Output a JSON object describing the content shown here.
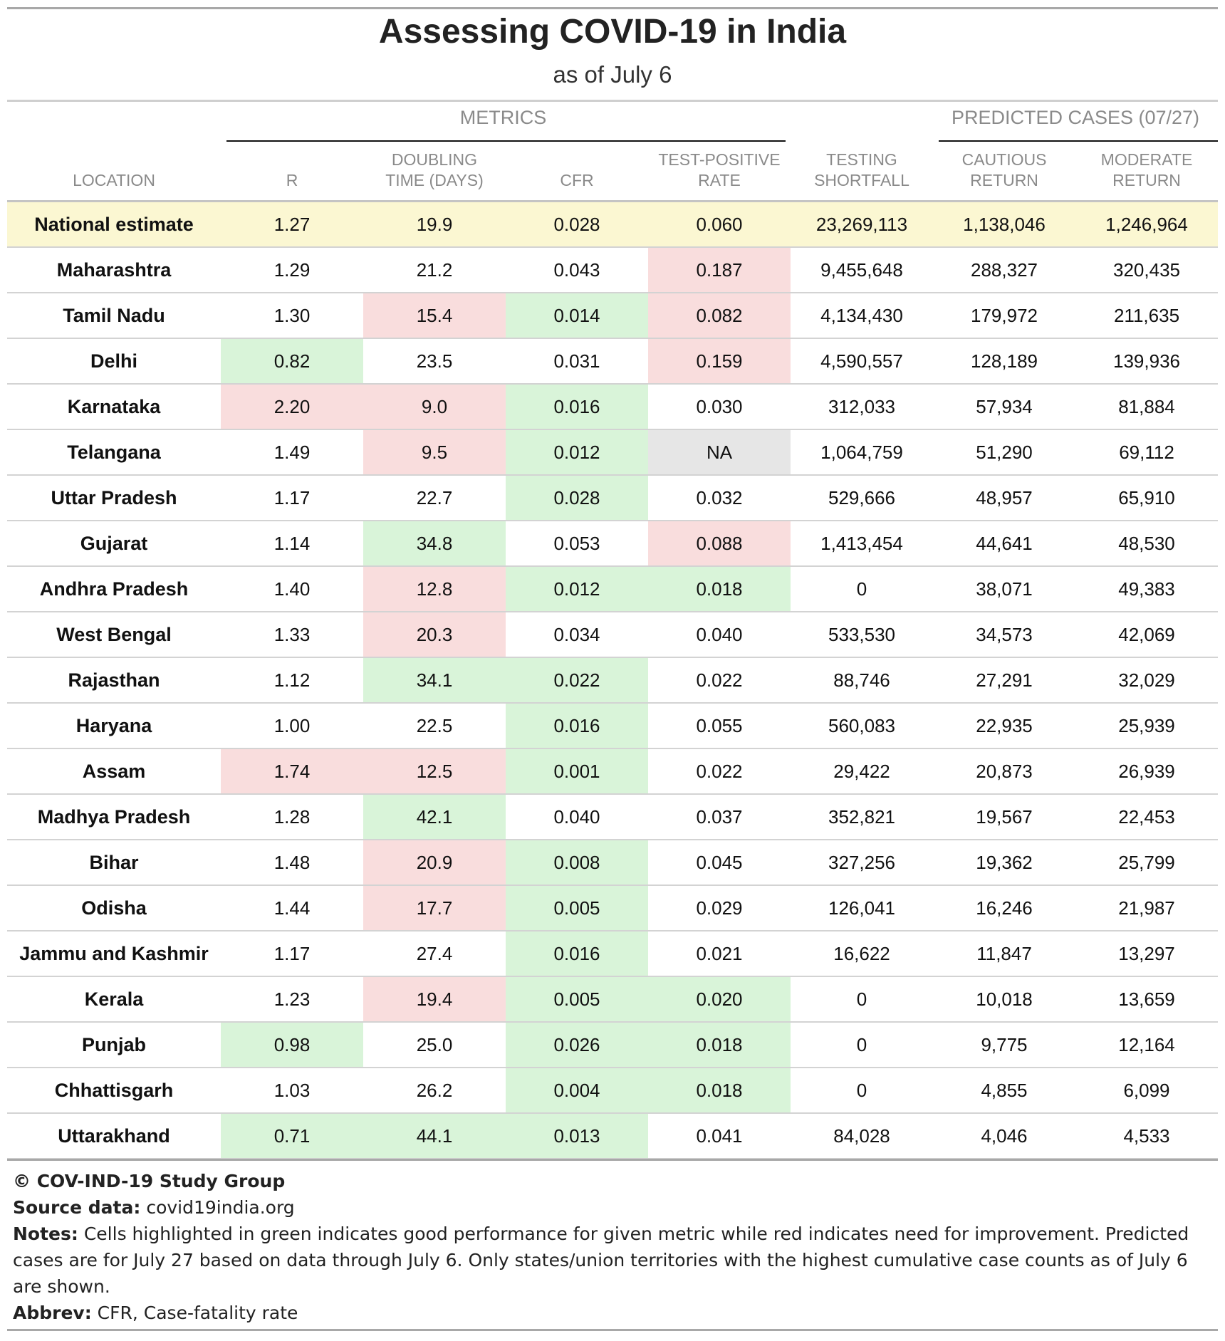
{
  "header": {
    "title": "Assessing COVID-19 in India",
    "subtitle": "as of July 6",
    "spanner_metrics": "METRICS",
    "spanner_predicted": "PREDICTED CASES (07/27)"
  },
  "chart_data": {
    "type": "table",
    "title": "Assessing COVID-19 in India",
    "subtitle": "as of July 6",
    "column_groups": [
      {
        "label": "METRICS",
        "columns": [
          "R",
          "DOUBLING TIME (DAYS)",
          "CFR",
          "TEST-POSITIVE RATE"
        ]
      },
      {
        "label": "PREDICTED CASES (07/27)",
        "columns": [
          "CAUTIOUS RETURN",
          "MODERATE RETURN"
        ]
      }
    ],
    "columns": [
      "LOCATION",
      "R",
      "DOUBLING TIME (DAYS)",
      "CFR",
      "TEST-POSITIVE RATE",
      "TESTING SHORTFALL",
      "CAUTIOUS RETURN",
      "MODERATE RETURN"
    ],
    "highlight_colors": {
      "good": "#d9f4d9",
      "bad": "#f9dddd",
      "na": "#e6e6e6",
      "national": "#fbf7d2"
    },
    "rows": [
      {
        "location": "National estimate",
        "national": true,
        "values": [
          "1.27",
          "19.9",
          "0.028",
          "0.060",
          "23,269,113",
          "1,138,046",
          "1,246,964"
        ],
        "hl": [
          "",
          "",
          "",
          "",
          "",
          "",
          ""
        ]
      },
      {
        "location": "Maharashtra",
        "values": [
          "1.29",
          "21.2",
          "0.043",
          "0.187",
          "9,455,648",
          "288,327",
          "320,435"
        ],
        "hl": [
          "",
          "",
          "",
          "r",
          "",
          "",
          ""
        ]
      },
      {
        "location": "Tamil Nadu",
        "values": [
          "1.30",
          "15.4",
          "0.014",
          "0.082",
          "4,134,430",
          "179,972",
          "211,635"
        ],
        "hl": [
          "",
          "r",
          "g",
          "r",
          "",
          "",
          ""
        ]
      },
      {
        "location": "Delhi",
        "values": [
          "0.82",
          "23.5",
          "0.031",
          "0.159",
          "4,590,557",
          "128,189",
          "139,936"
        ],
        "hl": [
          "g",
          "",
          "",
          "r",
          "",
          "",
          ""
        ]
      },
      {
        "location": "Karnataka",
        "values": [
          "2.20",
          "9.0",
          "0.016",
          "0.030",
          "312,033",
          "57,934",
          "81,884"
        ],
        "hl": [
          "r",
          "r",
          "g",
          "",
          "",
          "",
          ""
        ]
      },
      {
        "location": "Telangana",
        "values": [
          "1.49",
          "9.5",
          "0.012",
          "NA",
          "1,064,759",
          "51,290",
          "69,112"
        ],
        "hl": [
          "",
          "r",
          "g",
          "n",
          "",
          "",
          ""
        ]
      },
      {
        "location": "Uttar Pradesh",
        "values": [
          "1.17",
          "22.7",
          "0.028",
          "0.032",
          "529,666",
          "48,957",
          "65,910"
        ],
        "hl": [
          "",
          "",
          "g",
          "",
          "",
          "",
          ""
        ]
      },
      {
        "location": "Gujarat",
        "values": [
          "1.14",
          "34.8",
          "0.053",
          "0.088",
          "1,413,454",
          "44,641",
          "48,530"
        ],
        "hl": [
          "",
          "g",
          "",
          "r",
          "",
          "",
          ""
        ]
      },
      {
        "location": "Andhra Pradesh",
        "values": [
          "1.40",
          "12.8",
          "0.012",
          "0.018",
          "0",
          "38,071",
          "49,383"
        ],
        "hl": [
          "",
          "r",
          "g",
          "g",
          "",
          "",
          ""
        ]
      },
      {
        "location": "West Bengal",
        "values": [
          "1.33",
          "20.3",
          "0.034",
          "0.040",
          "533,530",
          "34,573",
          "42,069"
        ],
        "hl": [
          "",
          "r",
          "",
          "",
          "",
          "",
          ""
        ]
      },
      {
        "location": "Rajasthan",
        "values": [
          "1.12",
          "34.1",
          "0.022",
          "0.022",
          "88,746",
          "27,291",
          "32,029"
        ],
        "hl": [
          "",
          "g",
          "g",
          "",
          "",
          "",
          ""
        ]
      },
      {
        "location": "Haryana",
        "values": [
          "1.00",
          "22.5",
          "0.016",
          "0.055",
          "560,083",
          "22,935",
          "25,939"
        ],
        "hl": [
          "",
          "",
          "g",
          "",
          "",
          "",
          ""
        ]
      },
      {
        "location": "Assam",
        "values": [
          "1.74",
          "12.5",
          "0.001",
          "0.022",
          "29,422",
          "20,873",
          "26,939"
        ],
        "hl": [
          "r",
          "r",
          "g",
          "",
          "",
          "",
          ""
        ]
      },
      {
        "location": "Madhya Pradesh",
        "values": [
          "1.28",
          "42.1",
          "0.040",
          "0.037",
          "352,821",
          "19,567",
          "22,453"
        ],
        "hl": [
          "",
          "g",
          "",
          "",
          "",
          "",
          ""
        ]
      },
      {
        "location": "Bihar",
        "values": [
          "1.48",
          "20.9",
          "0.008",
          "0.045",
          "327,256",
          "19,362",
          "25,799"
        ],
        "hl": [
          "",
          "r",
          "g",
          "",
          "",
          "",
          ""
        ]
      },
      {
        "location": "Odisha",
        "values": [
          "1.44",
          "17.7",
          "0.005",
          "0.029",
          "126,041",
          "16,246",
          "21,987"
        ],
        "hl": [
          "",
          "r",
          "g",
          "",
          "",
          "",
          ""
        ]
      },
      {
        "location": "Jammu and Kashmir",
        "values": [
          "1.17",
          "27.4",
          "0.016",
          "0.021",
          "16,622",
          "11,847",
          "13,297"
        ],
        "hl": [
          "",
          "",
          "g",
          "",
          "",
          "",
          ""
        ]
      },
      {
        "location": "Kerala",
        "values": [
          "1.23",
          "19.4",
          "0.005",
          "0.020",
          "0",
          "10,018",
          "13,659"
        ],
        "hl": [
          "",
          "r",
          "g",
          "g",
          "",
          "",
          ""
        ]
      },
      {
        "location": "Punjab",
        "values": [
          "0.98",
          "25.0",
          "0.026",
          "0.018",
          "0",
          "9,775",
          "12,164"
        ],
        "hl": [
          "g",
          "",
          "g",
          "g",
          "",
          "",
          ""
        ]
      },
      {
        "location": "Chhattisgarh",
        "values": [
          "1.03",
          "26.2",
          "0.004",
          "0.018",
          "0",
          "4,855",
          "6,099"
        ],
        "hl": [
          "",
          "",
          "g",
          "g",
          "",
          "",
          ""
        ]
      },
      {
        "location": "Uttarakhand",
        "values": [
          "0.71",
          "44.1",
          "0.013",
          "0.041",
          "84,028",
          "4,046",
          "4,533"
        ],
        "hl": [
          "g",
          "g",
          "g",
          "",
          "",
          "",
          ""
        ]
      }
    ]
  },
  "footer": {
    "copyright": "© COV-IND-19 Study Group",
    "source_label": "Source data:",
    "source_value": "covid19india.org",
    "notes_label": "Notes:",
    "notes_value": "Cells highlighted in green indicates good performance for given metric while red indicates need for improvement. Predicted cases are for July 27 based on data through July 6. Only states/union territories with the highest cumulative case counts as of July 6 are shown.",
    "abbrev_label": "Abbrev:",
    "abbrev_value": "CFR, Case-fatality rate"
  }
}
